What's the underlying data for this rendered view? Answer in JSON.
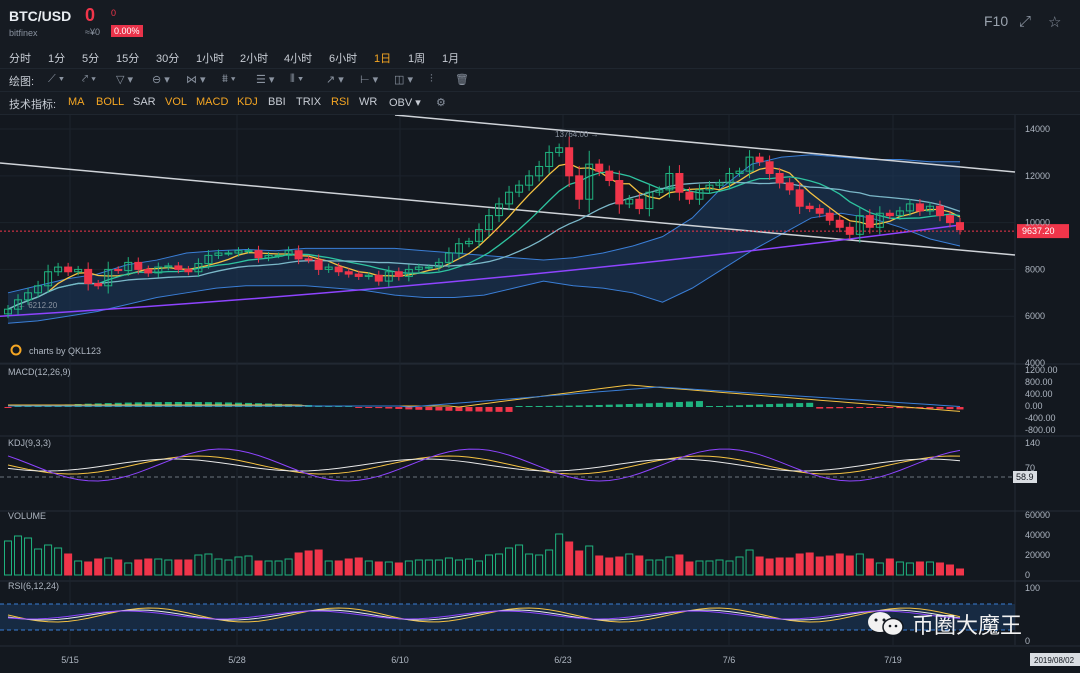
{
  "header": {
    "symbol": "BTC/USD",
    "exchange": "bitfinex",
    "price": "0",
    "change": "0",
    "cny": "≈¥0",
    "change_pct": "0.00%",
    "f10": "F10"
  },
  "periods": [
    "分时",
    "1分",
    "5分",
    "15分",
    "30分",
    "1小时",
    "2小时",
    "4小时",
    "6小时",
    "1日",
    "1周",
    "1月"
  ],
  "active_period": "1日",
  "draw_label": "绘图:",
  "indicator_label": "技术指标:",
  "indicators": [
    "MA",
    "BOLL",
    "SAR",
    "VOL",
    "MACD",
    "KDJ",
    "BBI",
    "TRIX",
    "RSI",
    "WR",
    "OBV"
  ],
  "indicators_highlighted": [
    "MA",
    "BOLL",
    "VOL",
    "MACD",
    "KDJ",
    "RSI"
  ],
  "colors": {
    "up": "#1fb37f",
    "down": "#f0354a",
    "ma5": "#f5c242",
    "ma10": "#2ec4a0",
    "ma20": "#7bb8c9",
    "ma60": "#8e44ff",
    "boll": "#3a7ed6",
    "macd_dif": "#f5c242",
    "macd_dea": "#3a7ed6",
    "k": "#f5c242",
    "d": "#e8e8e8",
    "j": "#8e44ff"
  },
  "chart_data": [
    {
      "type": "candlestick",
      "panel": "price",
      "title": "",
      "ylim": [
        4000,
        14600
      ],
      "yticks": [
        "14000",
        "12000",
        "10000",
        "8000",
        "6000",
        "4000"
      ],
      "x_labels": [
        "5/15",
        "5/28",
        "6/10",
        "6/23",
        "7/6",
        "7/19",
        "2019/08/02"
      ],
      "annotations": {
        "high": "13764.00",
        "low": "6212.20",
        "last": "9637.20"
      },
      "watermark": "charts by QKL123",
      "closes": [
        6300,
        6700,
        7000,
        7300,
        7900,
        8100,
        7900,
        8000,
        7400,
        7300,
        8000,
        7950,
        8300,
        8000,
        7850,
        8100,
        8150,
        8000,
        7900,
        8250,
        8600,
        8700,
        8700,
        8800,
        8800,
        8500,
        8600,
        8600,
        8800,
        8450,
        8400,
        8000,
        8100,
        7900,
        7800,
        7700,
        7750,
        7500,
        7900,
        7700,
        8000,
        8100,
        8100,
        8300,
        8700,
        9100,
        9200,
        9700,
        10300,
        10800,
        11300,
        11600,
        12000,
        12400,
        13000,
        13200,
        12000,
        11000,
        12500,
        12200,
        11800,
        10800,
        11000,
        10600,
        11300,
        11400,
        12100,
        11300,
        11000,
        11400,
        11600,
        11700,
        12100,
        12200,
        12800,
        12600,
        12100,
        11700,
        11400,
        10700,
        10600,
        10400,
        10100,
        9800,
        9500,
        10300,
        9800,
        10400,
        10300,
        10500,
        10800,
        10500,
        10700,
        10300,
        10000,
        9700
      ],
      "bollinger_upper": [
        7000,
        7300,
        7600,
        7800,
        8200,
        8400,
        8700,
        8800,
        8850,
        8800,
        8900,
        8900,
        8900,
        8900,
        8800,
        8700,
        8600,
        8500,
        8400,
        8500,
        8700,
        9000,
        9400,
        10200,
        11500,
        12500,
        12800,
        12900,
        12800,
        12700,
        12700,
        12600,
        12600
      ],
      "bollinger_lower": [
        5700,
        5800,
        6000,
        6200,
        6500,
        6800,
        7000,
        7200,
        7300,
        7300,
        7300,
        7200,
        7100,
        6900,
        6800,
        6800,
        6900,
        7200,
        7500,
        7300,
        7200,
        7000,
        6600,
        7200,
        8000,
        8800,
        9500,
        10200,
        10400,
        10200,
        9800,
        9300,
        9000
      ]
    },
    {
      "type": "line",
      "panel": "MACD",
      "title": "MACD(12,26,9)",
      "yticks": [
        "1200.00",
        "800.00",
        "400.00",
        "0.00",
        "-400.00",
        "-800.00"
      ]
    },
    {
      "type": "line",
      "panel": "KDJ",
      "title": "KDJ(9,3,3)",
      "yticks": [
        "140",
        "70",
        "0"
      ],
      "last": "58.9"
    },
    {
      "type": "bar",
      "panel": "VOLUME",
      "title": "VOLUME",
      "yticks": [
        "60000",
        "40000",
        "20000",
        "0"
      ],
      "values": [
        34000,
        39000,
        37000,
        26000,
        30000,
        27000,
        21000,
        14000,
        13000,
        16000,
        17000,
        15000,
        12000,
        15000,
        16000,
        16000,
        15000,
        15000,
        15000,
        20000,
        21000,
        16000,
        15000,
        18000,
        19000,
        14000,
        14000,
        14000,
        16000,
        22000,
        24000,
        25000,
        14000,
        14000,
        16000,
        17000,
        14000,
        13000,
        13000,
        12000,
        14000,
        15000,
        15000,
        15000,
        17000,
        15000,
        16000,
        14000,
        20000,
        21000,
        27000,
        30000,
        21000,
        20000,
        25000,
        41000,
        33000,
        24000,
        29000,
        19000,
        17000,
        18000,
        21000,
        19000,
        15000,
        15000,
        18000,
        20000,
        13000,
        14000,
        14000,
        15000,
        14000,
        18000,
        25000,
        18000,
        16000,
        17000,
        17000,
        21000,
        22000,
        18000,
        19000,
        21000,
        19000,
        21000,
        16000,
        12000,
        16000,
        13000,
        12000,
        13000,
        13000,
        12000,
        10000,
        6000
      ]
    },
    {
      "type": "line",
      "panel": "RSI",
      "title": "RSI(6,12,24)",
      "yticks": [
        "100",
        "0"
      ]
    }
  ],
  "watermark_text": "币圈大魔王"
}
